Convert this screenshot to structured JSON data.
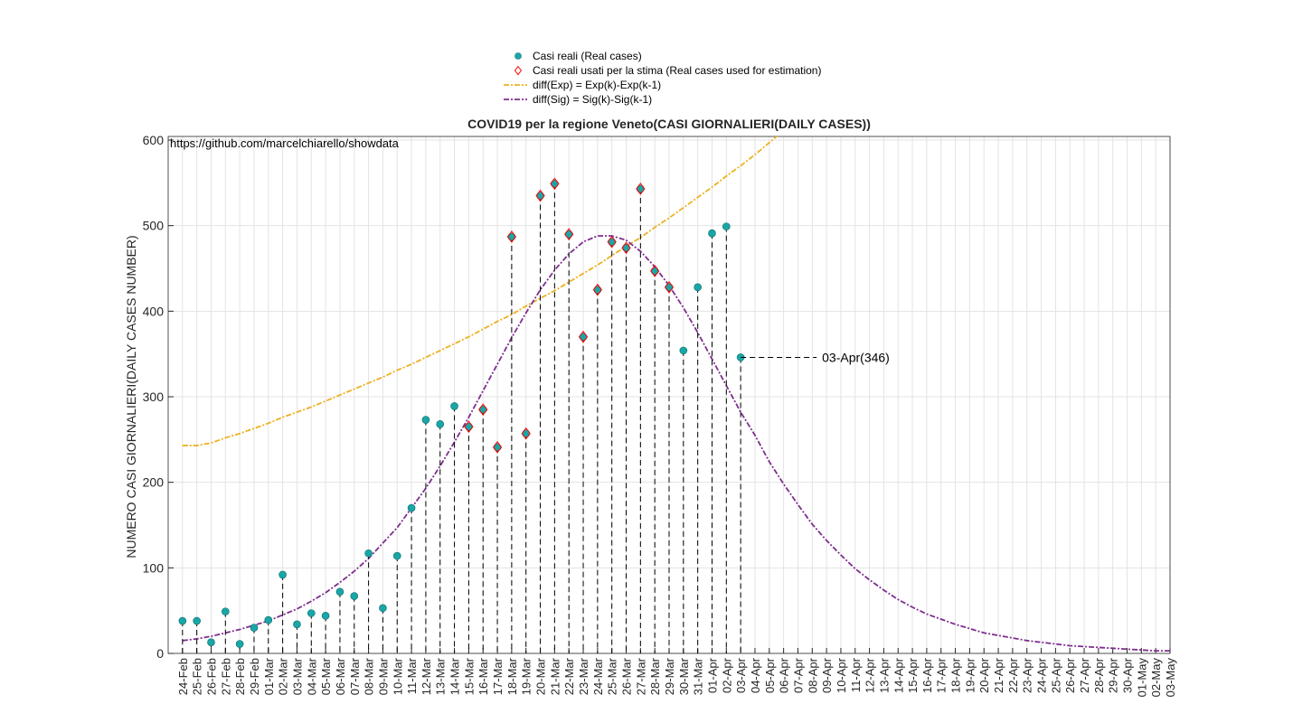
{
  "chart_data": {
    "type": "line",
    "title": "COVID19 per la regione Veneto(CASI GIORNALIERI(DAILY CASES))",
    "ylabel": "NUMERO CASI GIORNALIERI(DAILY CASES NUMBER)",
    "source": "https://github.com/marcelchiarello/showdata",
    "annotation": "03-Apr(346)",
    "annotation_index": 39,
    "categories": [
      "24-Feb",
      "25-Feb",
      "26-Feb",
      "27-Feb",
      "28-Feb",
      "29-Feb",
      "01-Mar",
      "02-Mar",
      "03-Mar",
      "04-Mar",
      "05-Mar",
      "06-Mar",
      "07-Mar",
      "08-Mar",
      "09-Mar",
      "10-Mar",
      "11-Mar",
      "12-Mar",
      "13-Mar",
      "14-Mar",
      "15-Mar",
      "16-Mar",
      "17-Mar",
      "18-Mar",
      "19-Mar",
      "20-Mar",
      "21-Mar",
      "22-Mar",
      "23-Mar",
      "24-Mar",
      "25-Mar",
      "26-Mar",
      "27-Mar",
      "28-Mar",
      "29-Mar",
      "30-Mar",
      "31-Mar",
      "01-Apr",
      "02-Apr",
      "03-Apr",
      "04-Apr",
      "05-Apr",
      "06-Apr",
      "07-Apr",
      "08-Apr",
      "09-Apr",
      "10-Apr",
      "11-Apr",
      "12-Apr",
      "13-Apr",
      "14-Apr",
      "15-Apr",
      "16-Apr",
      "17-Apr",
      "18-Apr",
      "19-Apr",
      "20-Apr",
      "21-Apr",
      "22-Apr",
      "23-Apr",
      "24-Apr",
      "25-Apr",
      "26-Apr",
      "27-Apr",
      "28-Apr",
      "29-Apr",
      "30-Apr",
      "01-May",
      "02-May",
      "03-May"
    ],
    "series": [
      {
        "name": "Casi reali (Real cases)",
        "style": "dot",
        "color": "#1aa6a6",
        "values": [
          38,
          38,
          13,
          49,
          11,
          30,
          39,
          92,
          34,
          47,
          44,
          72,
          67,
          117,
          53,
          114,
          170,
          273,
          268,
          289,
          265,
          285,
          241,
          487,
          257,
          535,
          549,
          490,
          370,
          425,
          481,
          474,
          543,
          447,
          428,
          354,
          428,
          491,
          499,
          346,
          null,
          null,
          null,
          null,
          null,
          null,
          null,
          null,
          null,
          null,
          null,
          null,
          null,
          null,
          null,
          null,
          null,
          null,
          null,
          null,
          null,
          null,
          null,
          null,
          null,
          null,
          null,
          null,
          null,
          null
        ]
      },
      {
        "name": "Casi reali usati per la stima (Real cases used for estimation)",
        "style": "diamond",
        "color": "#ff0000",
        "values": [
          null,
          null,
          null,
          null,
          null,
          null,
          null,
          null,
          null,
          null,
          null,
          null,
          null,
          null,
          null,
          null,
          null,
          null,
          null,
          null,
          265,
          285,
          241,
          487,
          257,
          535,
          549,
          490,
          370,
          425,
          481,
          474,
          543,
          447,
          428,
          null,
          null,
          null,
          null,
          null,
          null,
          null,
          null,
          null,
          null,
          null,
          null,
          null,
          null,
          null,
          null,
          null,
          null,
          null,
          null,
          null,
          null,
          null,
          null,
          null,
          null,
          null,
          null,
          null,
          null,
          null,
          null,
          null,
          null,
          null
        ]
      },
      {
        "name": "diff(Exp) = Exp(k)-Exp(k-1)",
        "style": "dashline",
        "color": "#edb120",
        "values": [
          243,
          243,
          246,
          252,
          257,
          263,
          269,
          276,
          282,
          288,
          295,
          302,
          309,
          316,
          323,
          331,
          338,
          346,
          354,
          362,
          370,
          379,
          388,
          396,
          406,
          415,
          424,
          434,
          444,
          454,
          465,
          476,
          486,
          498,
          509,
          521,
          533,
          545,
          558,
          570,
          583,
          597,
          611,
          null,
          null,
          null,
          null,
          null,
          null,
          null,
          null,
          null,
          null,
          null,
          null,
          null,
          null,
          null,
          null,
          null,
          null,
          null,
          null,
          null,
          null,
          null,
          null,
          null,
          null,
          null
        ]
      },
      {
        "name": "diff(Sig) = Sig(k)-Sig(k-1)",
        "style": "dashline",
        "color": "#7e2f8e",
        "values": [
          15,
          17,
          20,
          24,
          28,
          33,
          38,
          45,
          52,
          61,
          71,
          83,
          96,
          111,
          129,
          147,
          170,
          193,
          219,
          247,
          276,
          307,
          338,
          369,
          398,
          425,
          448,
          467,
          481,
          488,
          488,
          483,
          470,
          452,
          430,
          404,
          375,
          344,
          313,
          282,
          255,
          224,
          198,
          174,
          151,
          132,
          115,
          99,
          86,
          74,
          63,
          54,
          46,
          40,
          34,
          29,
          24,
          21,
          18,
          15,
          13,
          11,
          9,
          8,
          7,
          6,
          5,
          4,
          3,
          3
        ]
      }
    ],
    "ylim": [
      0,
      600
    ],
    "yticks": [
      0,
      100,
      200,
      300,
      400,
      500,
      600
    ],
    "grid": true
  }
}
